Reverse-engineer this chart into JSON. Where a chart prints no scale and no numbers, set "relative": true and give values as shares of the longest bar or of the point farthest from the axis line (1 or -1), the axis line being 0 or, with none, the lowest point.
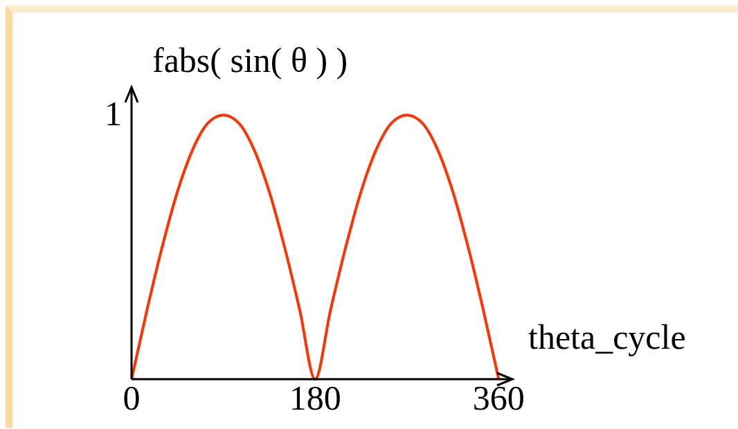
{
  "chart_data": {
    "type": "line",
    "xlabel": "theta_cycle",
    "ylabel": "fabs( sin( θ ) )",
    "x": [
      0,
      15,
      30,
      45,
      60,
      75,
      90,
      105,
      120,
      135,
      150,
      165,
      180,
      195,
      210,
      225,
      240,
      255,
      270,
      285,
      300,
      315,
      330,
      345,
      360
    ],
    "series": [
      {
        "color": "#ff3300",
        "values": [
          0,
          0.26,
          0.5,
          0.71,
          0.87,
          0.97,
          1,
          0.97,
          0.87,
          0.71,
          0.5,
          0.26,
          0,
          0.26,
          0.5,
          0.71,
          0.87,
          0.97,
          1,
          0.97,
          0.87,
          0.71,
          0.5,
          0.26,
          0
        ]
      }
    ],
    "relative": true,
    "annotations": [
      "1"
    ],
    "xlim": [
      0,
      372
    ],
    "xticks": [
      0,
      180,
      360
    ],
    "grid": false,
    "legend": false,
    "marker": "none"
  }
}
